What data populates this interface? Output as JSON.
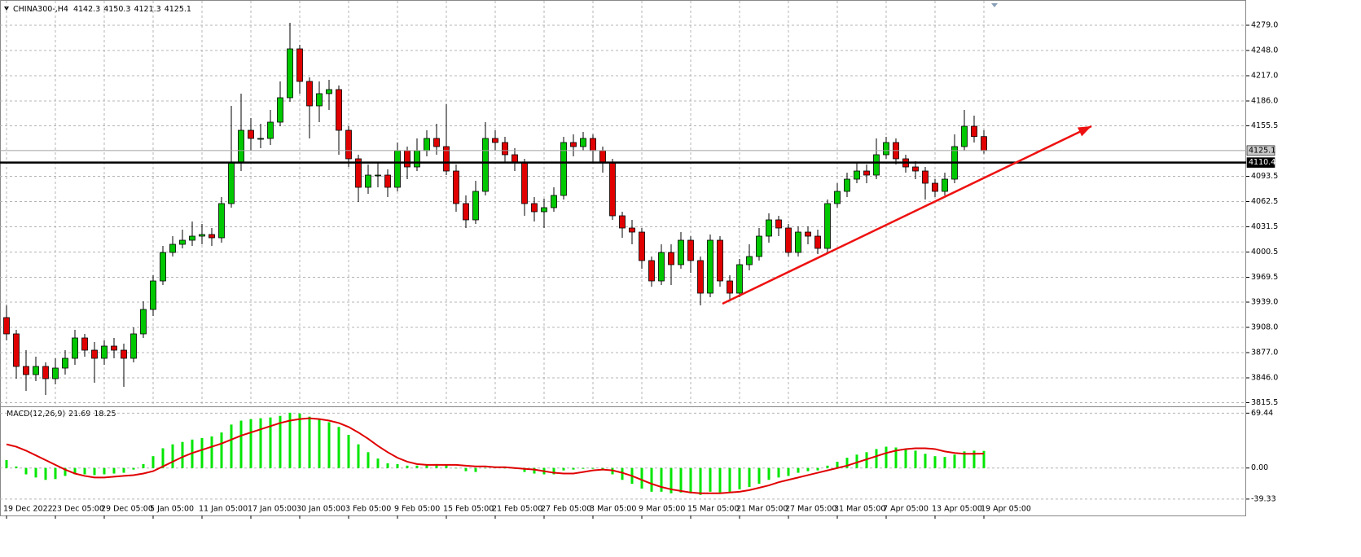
{
  "chart_data": [
    {
      "type": "candlestick",
      "title": "CHINA300-,H4",
      "categories": [
        "19 Dec 2022",
        null,
        null,
        null,
        null,
        "23 Dec 05:00",
        null,
        null,
        null,
        null,
        "29 Dec 05:00",
        null,
        null,
        null,
        null,
        "5 Jan 05:00",
        null,
        null,
        null,
        null,
        "11 Jan 05:00",
        null,
        null,
        null,
        null,
        "17 Jan 05:00",
        null,
        null,
        null,
        null,
        "30 Jan 05:00",
        null,
        null,
        null,
        null,
        "3 Feb 05:00",
        null,
        null,
        null,
        null,
        "9 Feb 05:00",
        null,
        null,
        null,
        null,
        "15 Feb 05:00",
        null,
        null,
        null,
        null,
        "21 Feb 05:00",
        null,
        null,
        null,
        null,
        "27 Feb 05:00",
        null,
        null,
        null,
        null,
        "3 Mar 05:00",
        null,
        null,
        null,
        null,
        "9 Mar 05:00",
        null,
        null,
        null,
        null,
        "15 Mar 05:00",
        null,
        null,
        null,
        null,
        "21 Mar 05:00",
        null,
        null,
        null,
        null,
        "27 Mar 05:00",
        null,
        null,
        null,
        null,
        "31 Mar 05:00",
        null,
        null,
        null,
        null,
        "7 Apr 05:00",
        null,
        null,
        null,
        null,
        "13 Apr 05:00",
        null,
        null,
        null,
        null,
        "19 Apr 05:00"
      ],
      "open": [
        3920,
        3900,
        3860,
        3850,
        3860,
        3845,
        3858,
        3870,
        3895,
        3880,
        3870,
        3885,
        3880,
        3870,
        3900,
        3930,
        3965,
        4000,
        4010,
        4015,
        4020,
        4022,
        4018,
        4060,
        4110,
        4150,
        4140,
        4140,
        4160,
        4190,
        4250,
        4210,
        4180,
        4195,
        4200,
        4150,
        4115,
        4080,
        4095,
        4095,
        4080,
        4125,
        4105,
        4125,
        4140,
        4130,
        4100,
        4060,
        4040,
        4075,
        4140,
        4135,
        4120,
        4110,
        4060,
        4050,
        4055,
        4070,
        4135,
        4130,
        4140,
        4125,
        4110,
        4045,
        4030,
        4025,
        3990,
        3965,
        4000,
        3985,
        4015,
        3990,
        3950,
        4015,
        3965,
        3950,
        3985,
        3995,
        4020,
        4040,
        4030,
        4000,
        4025,
        4020,
        4005,
        4060,
        4075,
        4090,
        4100,
        4095,
        4120,
        4135,
        4115,
        4105,
        4100,
        4085,
        4075,
        4090,
        4130,
        4155,
        4142.3
      ],
      "high": [
        3935,
        3905,
        3880,
        3872,
        3865,
        3870,
        3880,
        3905,
        3900,
        3890,
        3892,
        3895,
        3888,
        3908,
        3940,
        3972,
        4008,
        4020,
        4028,
        4038,
        4035,
        4030,
        4068,
        4180,
        4195,
        4165,
        4158,
        4175,
        4210,
        4282,
        4255,
        4215,
        4210,
        4212,
        4205,
        4155,
        4120,
        4108,
        4110,
        4102,
        4135,
        4130,
        4140,
        4150,
        4158,
        4182,
        4108,
        4070,
        4088,
        4160,
        4150,
        4142,
        4128,
        4115,
        4068,
        4066,
        4080,
        4142,
        4145,
        4148,
        4145,
        4130,
        4115,
        4050,
        4040,
        4030,
        3995,
        4010,
        4010,
        4025,
        4020,
        3995,
        4022,
        4020,
        3972,
        3992,
        4010,
        4030,
        4048,
        4045,
        4035,
        4032,
        4032,
        4028,
        4065,
        4085,
        4098,
        4110,
        4108,
        4140,
        4142,
        4140,
        4120,
        4112,
        4105,
        4090,
        4098,
        4145,
        4175,
        4168,
        4150.3
      ],
      "low": [
        3892,
        3845,
        3830,
        3842,
        3825,
        3838,
        3850,
        3862,
        3872,
        3840,
        3862,
        3870,
        3835,
        3865,
        3895,
        3922,
        3960,
        3995,
        4005,
        4008,
        4010,
        4008,
        4012,
        4055,
        4100,
        4125,
        4128,
        4132,
        4155,
        4185,
        4195,
        4140,
        4160,
        4175,
        4120,
        4105,
        4062,
        4072,
        4080,
        4068,
        4075,
        4090,
        4100,
        4118,
        4120,
        4095,
        4050,
        4030,
        4035,
        4070,
        4125,
        4110,
        4100,
        4045,
        4038,
        4030,
        4050,
        4065,
        4118,
        4125,
        4110,
        4098,
        4040,
        4018,
        4010,
        3980,
        3958,
        3960,
        3960,
        3980,
        3975,
        3935,
        3945,
        3958,
        3940,
        3945,
        3978,
        3990,
        4012,
        4020,
        3995,
        3995,
        4010,
        3998,
        4000,
        4055,
        4068,
        4085,
        4085,
        4090,
        4115,
        4108,
        4098,
        4090,
        4065,
        4068,
        4070,
        4085,
        4125,
        4135,
        4121.3
      ],
      "close": [
        3900,
        3860,
        3850,
        3860,
        3845,
        3858,
        3870,
        3895,
        3880,
        3870,
        3885,
        3880,
        3870,
        3900,
        3930,
        3965,
        4000,
        4010,
        4015,
        4020,
        4022,
        4018,
        4060,
        4110,
        4150,
        4140,
        4140,
        4160,
        4190,
        4250,
        4210,
        4180,
        4195,
        4200,
        4150,
        4115,
        4080,
        4095,
        4095,
        4080,
        4125,
        4105,
        4125,
        4140,
        4130,
        4100,
        4060,
        4040,
        4075,
        4140,
        4135,
        4120,
        4110,
        4060,
        4050,
        4055,
        4070,
        4135,
        4130,
        4140,
        4125,
        4110,
        4045,
        4030,
        4025,
        3990,
        3965,
        4000,
        3985,
        4015,
        3990,
        3950,
        4015,
        3965,
        3950,
        3985,
        3995,
        4020,
        4040,
        4030,
        4000,
        4025,
        4020,
        4005,
        4060,
        4075,
        4090,
        4100,
        4095,
        4120,
        4135,
        4115,
        4105,
        4100,
        4085,
        4075,
        4090,
        4130,
        4155,
        4142.3,
        4125.1
      ],
      "up_color": "#00c800",
      "down_color": "#e00000",
      "ylim": [
        3813,
        4305
      ],
      "yticks": [
        {
          "value": 4279,
          "label": "4279.0"
        },
        {
          "value": 4248,
          "label": "4248.0"
        },
        {
          "value": 4217,
          "label": "4217.0"
        },
        {
          "value": 4186,
          "label": "4186.0"
        },
        4155.5,
        4093.5,
        4062.5,
        4031.5,
        4000.5,
        3969.5,
        {
          "value": 3939,
          "label": "3939.0"
        },
        {
          "value": 3908,
          "label": "3908.0"
        },
        {
          "value": 3877,
          "label": "3877.0"
        },
        {
          "value": 3846,
          "label": "3846.0"
        },
        3815.5
      ],
      "grid": true,
      "hlines": [
        {
          "value": 4125.1,
          "color": "#a0a0a0"
        },
        {
          "value": 4110.4,
          "color": "#000000"
        }
      ],
      "trend_line": {
        "x": [
          73.25,
          111
        ],
        "y": [
          3937,
          4155
        ],
        "color": "#ee1111"
      }
    },
    {
      "type": "macd",
      "title": "MACD(12,26,9)",
      "series": [
        {
          "color": "#00e600",
          "values": [
            10,
            2,
            -8,
            -12,
            -15,
            -14,
            -10,
            -8,
            -8,
            -9,
            -8,
            -7,
            -6,
            -2,
            5,
            15,
            25,
            30,
            33,
            36,
            38,
            40,
            45,
            55,
            60,
            62,
            63,
            64,
            66,
            70,
            69,
            65,
            62,
            58,
            52,
            42,
            30,
            20,
            12,
            6,
            5,
            3,
            3,
            4,
            5,
            4,
            0,
            -4,
            -5,
            0,
            1,
            0,
            -1,
            -5,
            -7,
            -8,
            -8,
            -3,
            -2,
            -1,
            -1,
            -2,
            -8,
            -15,
            -20,
            -26,
            -30,
            -30,
            -32,
            -31,
            -32,
            -34,
            -30,
            -31,
            -30,
            -27,
            -24,
            -20,
            -15,
            -12,
            -10,
            -6,
            -4,
            -3,
            3,
            8,
            13,
            17,
            20,
            24,
            27,
            26,
            24,
            22,
            18,
            15,
            14,
            17,
            21,
            22,
            21.69
          ]
        },
        {
          "color": "#e00000",
          "values": [
            30,
            27,
            22,
            16,
            10,
            4,
            -2,
            -7,
            -10,
            -12,
            -12,
            -11,
            -10,
            -9,
            -7,
            -4,
            2,
            8,
            14,
            19,
            23,
            27,
            31,
            36,
            41,
            45,
            49,
            53,
            57,
            60,
            62,
            63,
            62,
            60,
            57,
            52,
            45,
            37,
            28,
            20,
            13,
            8,
            5,
            4,
            4,
            4,
            4,
            3,
            2,
            2,
            1,
            1,
            0,
            -1,
            -2,
            -4,
            -6,
            -7,
            -7,
            -5,
            -3,
            -2,
            -3,
            -6,
            -10,
            -15,
            -20,
            -24,
            -27,
            -29,
            -31,
            -32,
            -32,
            -32,
            -31,
            -30,
            -28,
            -25,
            -22,
            -18,
            -15,
            -12,
            -9,
            -6,
            -3,
            0,
            3,
            7,
            11,
            15,
            19,
            22,
            24,
            25,
            25,
            24,
            21,
            19,
            18,
            18,
            18.25
          ]
        }
      ],
      "ylim": [
        -58,
        76
      ],
      "yticks": [
        69.44,
        {
          "value": 0,
          "label": "0.00"
        },
        -39.33
      ],
      "grid": true
    }
  ]
}
